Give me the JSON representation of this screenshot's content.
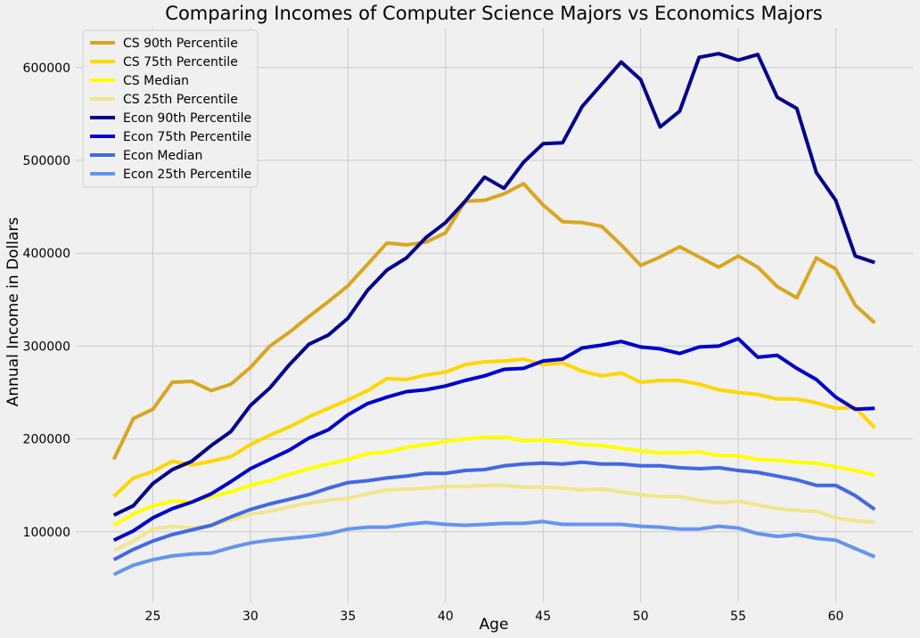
{
  "chart_data": {
    "type": "line",
    "title": "Comparing Incomes of Computer Science Majors vs Economics Majors",
    "xlabel": "Age",
    "ylabel": "Annual Income in Dollars",
    "xlim": [
      21.05,
      63.95
    ],
    "ylim": [
      24000,
      643000
    ],
    "xticks": [
      25,
      30,
      35,
      40,
      45,
      50,
      55,
      60
    ],
    "yticks": [
      100000,
      200000,
      300000,
      400000,
      500000,
      600000
    ],
    "grid": true,
    "legend_position": "top-left",
    "x": [
      23,
      24,
      25,
      26,
      27,
      28,
      29,
      30,
      31,
      32,
      33,
      34,
      35,
      36,
      37,
      38,
      39,
      40,
      41,
      42,
      43,
      44,
      45,
      46,
      47,
      48,
      49,
      50,
      51,
      52,
      53,
      54,
      55,
      56,
      57,
      58,
      59,
      60,
      61,
      62
    ],
    "series": [
      {
        "name": "CS 90th Percentile",
        "color": "#daa520",
        "values": [
          178000,
          222000,
          232000,
          261000,
          262000,
          252000,
          259000,
          277000,
          300000,
          315000,
          332000,
          348000,
          365000,
          388000,
          411000,
          409000,
          412000,
          422000,
          456000,
          457000,
          464000,
          475000,
          452000,
          434000,
          433000,
          429000,
          409000,
          387000,
          396000,
          407000,
          396000,
          385000,
          397000,
          385000,
          364000,
          352000,
          395000,
          383000,
          344000,
          325000
        ]
      },
      {
        "name": "CS 75th Percentile",
        "color": "#ffd700",
        "values": [
          138000,
          158000,
          165000,
          176000,
          172000,
          176000,
          181000,
          194000,
          204000,
          213000,
          224000,
          233000,
          242000,
          252000,
          265000,
          264000,
          269000,
          272000,
          280000,
          283000,
          284000,
          286000,
          280000,
          282000,
          273000,
          268000,
          271000,
          261000,
          263000,
          263000,
          259000,
          253000,
          250000,
          248000,
          243000,
          243000,
          239000,
          233000,
          234000,
          212000
        ]
      },
      {
        "name": "CS Median",
        "color": "#ffff00",
        "values": [
          107000,
          119000,
          128000,
          133000,
          132000,
          138000,
          143000,
          150000,
          155000,
          162000,
          168000,
          173000,
          178000,
          184000,
          186000,
          191000,
          194000,
          197000,
          200000,
          202000,
          202000,
          198000,
          199000,
          197000,
          194000,
          193000,
          190000,
          187000,
          185000,
          185000,
          186000,
          182000,
          182000,
          178000,
          177000,
          175000,
          174000,
          170000,
          166000,
          161000
        ]
      },
      {
        "name": "CS 25th Percentile",
        "color": "#f0e68c",
        "values": [
          80000,
          90000,
          103000,
          106000,
          104000,
          107000,
          113000,
          119000,
          122000,
          127000,
          131000,
          134000,
          136000,
          141000,
          145000,
          146000,
          147000,
          149000,
          149000,
          150000,
          150000,
          148000,
          148000,
          147000,
          145000,
          146000,
          143000,
          140000,
          138000,
          138000,
          134000,
          131000,
          133000,
          129000,
          125000,
          123000,
          122000,
          115000,
          112000,
          110000
        ]
      },
      {
        "name": "Econ 90th Percentile",
        "color": "#00008b",
        "values": [
          118000,
          128000,
          152000,
          167000,
          176000,
          193000,
          208000,
          236000,
          255000,
          280000,
          302000,
          312000,
          330000,
          360000,
          382000,
          395000,
          417000,
          433000,
          456000,
          482000,
          470000,
          498000,
          518000,
          519000,
          558000,
          582000,
          606000,
          587000,
          536000,
          553000,
          611000,
          615000,
          608000,
          614000,
          568000,
          556000,
          487000,
          457000,
          397000,
          390000
        ]
      },
      {
        "name": "Econ 75th Percentile",
        "color": "#0000cd",
        "values": [
          91000,
          101000,
          115000,
          125000,
          132000,
          141000,
          154000,
          168000,
          178000,
          188000,
          201000,
          210000,
          226000,
          238000,
          245000,
          251000,
          253000,
          257000,
          263000,
          268000,
          275000,
          276000,
          284000,
          286000,
          298000,
          301000,
          305000,
          299000,
          297000,
          292000,
          299000,
          300000,
          308000,
          288000,
          290000,
          276000,
          264000,
          245000,
          232000,
          233000
        ]
      },
      {
        "name": "Econ Median",
        "color": "#4169e1",
        "values": [
          70000,
          81000,
          90000,
          97000,
          102000,
          107000,
          116000,
          124000,
          130000,
          135000,
          140000,
          147000,
          153000,
          155000,
          158000,
          160000,
          163000,
          163000,
          166000,
          167000,
          171000,
          173000,
          174000,
          173000,
          175000,
          173000,
          173000,
          171000,
          171000,
          169000,
          168000,
          169000,
          166000,
          164000,
          160000,
          156000,
          150000,
          150000,
          139000,
          124000
        ]
      },
      {
        "name": "Econ 25th Percentile",
        "color": "#6495ed",
        "values": [
          54000,
          64000,
          70000,
          74000,
          76000,
          77000,
          83000,
          88000,
          91000,
          93000,
          95000,
          98000,
          103000,
          105000,
          105000,
          108000,
          110000,
          108000,
          107000,
          108000,
          109000,
          109000,
          111000,
          108000,
          108000,
          108000,
          108000,
          106000,
          105000,
          103000,
          103000,
          106000,
          104000,
          98000,
          95000,
          97000,
          93000,
          91000,
          82000,
          73000
        ]
      }
    ]
  }
}
